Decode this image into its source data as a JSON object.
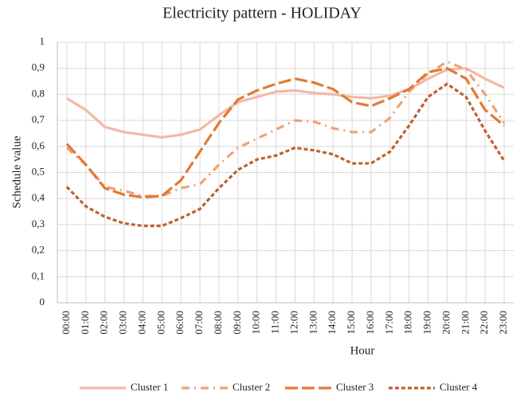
{
  "chart_data": {
    "type": "line",
    "title": "Electricity  pattern - HOLIDAY",
    "x_label": "Hour",
    "y_label": "Schedule value",
    "categories": [
      "00:00",
      "01:00",
      "02:00",
      "03:00",
      "04:00",
      "05:00",
      "06:00",
      "07:00",
      "08:00",
      "09:00",
      "10:00",
      "11:00",
      "12:00",
      "13:00",
      "14:00",
      "15:00",
      "16:00",
      "17:00",
      "18:00",
      "19:00",
      "20:00",
      "21:00",
      "22:00",
      "23:00"
    ],
    "series": [
      {
        "name": "Cluster 1",
        "color": "#f4b8a6",
        "values": [
          0.785,
          0.74,
          0.675,
          0.655,
          0.645,
          0.635,
          0.645,
          0.665,
          0.72,
          0.77,
          0.79,
          0.81,
          0.815,
          0.805,
          0.8,
          0.79,
          0.785,
          0.795,
          0.82,
          0.86,
          0.895,
          0.9,
          0.86,
          0.825
        ]
      },
      {
        "name": "Cluster 2",
        "color": "#f0a276",
        "values": [
          0.595,
          0.53,
          0.445,
          0.43,
          0.41,
          0.41,
          0.44,
          0.455,
          0.53,
          0.595,
          0.63,
          0.665,
          0.7,
          0.695,
          0.67,
          0.655,
          0.655,
          0.71,
          0.81,
          0.88,
          0.925,
          0.895,
          0.8,
          0.69
        ]
      },
      {
        "name": "Cluster 3",
        "color": "#e07a34",
        "values": [
          0.61,
          0.53,
          0.44,
          0.415,
          0.405,
          0.41,
          0.47,
          0.58,
          0.69,
          0.78,
          0.815,
          0.84,
          0.86,
          0.845,
          0.82,
          0.77,
          0.755,
          0.785,
          0.82,
          0.885,
          0.9,
          0.86,
          0.74,
          0.68
        ]
      },
      {
        "name": "Cluster 4",
        "color": "#c0602c",
        "values": [
          0.445,
          0.37,
          0.33,
          0.305,
          0.295,
          0.295,
          0.325,
          0.36,
          0.44,
          0.51,
          0.55,
          0.565,
          0.595,
          0.585,
          0.57,
          0.535,
          0.535,
          0.58,
          0.68,
          0.79,
          0.84,
          0.79,
          0.66,
          0.545
        ]
      }
    ],
    "ylim": [
      0,
      1
    ],
    "yticks": [
      0,
      {
        "value": 0.1,
        "label": "0,1"
      },
      {
        "value": 0.2,
        "label": "0,2"
      },
      {
        "value": 0.3,
        "label": "0,3"
      },
      {
        "value": 0.4,
        "label": "0,4"
      },
      {
        "value": 0.5,
        "label": "0,5"
      },
      {
        "value": 0.6,
        "label": "0,6"
      },
      {
        "value": 0.7,
        "label": "0,7"
      },
      {
        "value": 0.8,
        "label": "0,8"
      },
      {
        "value": 0.9,
        "label": "0,9"
      },
      1
    ],
    "grid": true,
    "legend": "bottom"
  }
}
